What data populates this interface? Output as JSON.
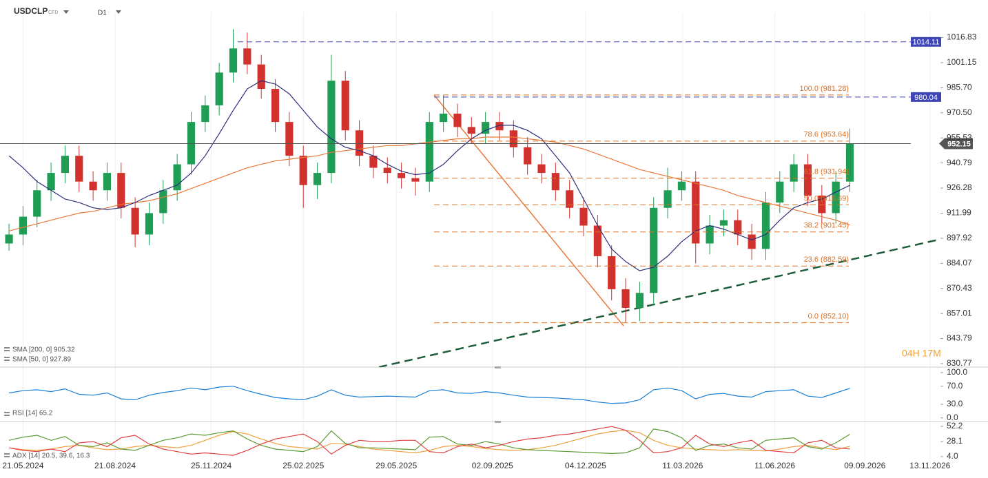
{
  "header": {
    "symbol": "USDCLP",
    "instrument_type": "CFD",
    "interval": "D1"
  },
  "countdown": "04H 17M",
  "chart_data": [
    {
      "type": "candlestick",
      "log_scale": true,
      "x_grid": true,
      "up_color": "#1f9d55",
      "down_color": "#d2322d",
      "x": [
        -14,
        0,
        14,
        28,
        42,
        56,
        70,
        84,
        98,
        112,
        126,
        140,
        154,
        168,
        182,
        196,
        210,
        224,
        238,
        252,
        266,
        280,
        294,
        308,
        322,
        336,
        350,
        364,
        378,
        392,
        406,
        420,
        434,
        448,
        462,
        476,
        490,
        504,
        518,
        532,
        546,
        560,
        574,
        588,
        602,
        616,
        630,
        644,
        658,
        672,
        686,
        700,
        714,
        728,
        742,
        756,
        770,
        784,
        798,
        812,
        826
      ],
      "open": [
        895,
        900,
        910,
        925,
        935,
        945,
        930,
        925,
        935,
        915,
        900,
        912,
        925,
        940,
        965,
        975,
        995,
        1010,
        1000,
        985,
        965,
        945,
        928,
        935,
        990,
        960,
        945,
        938,
        935,
        932,
        930,
        965,
        970,
        962,
        958,
        965,
        960,
        950,
        940,
        935,
        925,
        915,
        905,
        888,
        870,
        860,
        868,
        915,
        925,
        930,
        895,
        905,
        908,
        900,
        892,
        918,
        930,
        940,
        922,
        912,
        930
      ],
      "high": [
        906,
        916,
        931,
        941,
        951,
        951,
        936,
        941,
        941,
        921,
        918,
        931,
        946,
        971,
        981,
        1001,
        1022,
        1020,
        1006,
        991,
        971,
        951,
        941,
        1006,
        996,
        966,
        951,
        944,
        941,
        938,
        971,
        981,
        976,
        968,
        971,
        971,
        966,
        956,
        946,
        941,
        931,
        921,
        911,
        894,
        876,
        874,
        921,
        938,
        936,
        936,
        911,
        914,
        914,
        906,
        924,
        936,
        946,
        946,
        928,
        936,
        961
      ],
      "low": [
        891,
        894,
        904,
        919,
        929,
        924,
        919,
        919,
        909,
        893,
        894,
        906,
        919,
        934,
        959,
        969,
        989,
        994,
        979,
        959,
        939,
        915,
        920,
        929,
        954,
        939,
        932,
        929,
        926,
        922,
        924,
        959,
        956,
        952,
        952,
        954,
        944,
        934,
        929,
        919,
        909,
        899,
        882,
        864,
        852,
        853,
        862,
        909,
        919,
        884,
        889,
        899,
        894,
        886,
        886,
        912,
        924,
        916,
        906,
        906,
        924
      ],
      "close": [
        900,
        910,
        925,
        935,
        945,
        930,
        925,
        935,
        915,
        900,
        912,
        925,
        940,
        965,
        975,
        995,
        1010,
        1000,
        985,
        965,
        945,
        928,
        935,
        990,
        960,
        945,
        938,
        935,
        932,
        930,
        965,
        970,
        962,
        958,
        965,
        960,
        950,
        940,
        935,
        925,
        915,
        905,
        888,
        870,
        860,
        868,
        915,
        925,
        930,
        895,
        905,
        908,
        900,
        892,
        918,
        930,
        940,
        922,
        912,
        930,
        952
      ],
      "xlim": [
        -23,
        964
      ],
      "xticks": [
        {
          "value": 0,
          "label": "21.05.2024"
        },
        {
          "value": 92,
          "label": "21.08.2024"
        },
        {
          "value": 188,
          "label": "25.11.2024"
        },
        {
          "value": 280,
          "label": "25.02.2025"
        },
        {
          "value": 373,
          "label": "29.05.2025"
        },
        {
          "value": 469,
          "label": "02.09.2025"
        },
        {
          "value": 562,
          "label": "04.12.2025"
        },
        {
          "value": 659,
          "label": "11.03.2026"
        },
        {
          "value": 751,
          "label": "11.06.2026"
        },
        {
          "value": 841,
          "label": "09.09.2026"
        },
        {
          "value": 906,
          "label": "13.11.2026"
        }
      ],
      "ylim": [
        829.0,
        1032.8
      ],
      "yticks": [
        830.77,
        843.79,
        857.01,
        870.43,
        884.07,
        897.92,
        911.99,
        926.28,
        940.79,
        955.53,
        {
          "value": 970.5,
          "label": "970.50"
        },
        {
          "value": 985.7,
          "label": "985.70"
        },
        1001.15,
        1016.83
      ],
      "overlays": [
        {
          "name": "SMA [200, 0] 905.32",
          "color": "#e8793a",
          "values": [
            902,
            904,
            906,
            908,
            910,
            912,
            913,
            915,
            917,
            918,
            919,
            921,
            923,
            926,
            929,
            932,
            935,
            938,
            940,
            942,
            943,
            944,
            945,
            947,
            948,
            949,
            950,
            951,
            951,
            952,
            953,
            954,
            955,
            955,
            956,
            956,
            956,
            955,
            954,
            953,
            951,
            949,
            946,
            943,
            940,
            937,
            935,
            933,
            931,
            929,
            927,
            925,
            922,
            920,
            918,
            916,
            914,
            912,
            910,
            908,
            905.32
          ]
        },
        {
          "name": "SMA [50, 0] 927.89",
          "color": "#2b2f7a",
          "values": [
            945,
            938,
            930,
            925,
            920,
            918,
            915,
            914,
            915,
            918,
            922,
            925,
            928,
            935,
            945,
            958,
            972,
            985,
            990,
            988,
            982,
            972,
            962,
            955,
            950,
            948,
            945,
            940,
            936,
            934,
            935,
            940,
            948,
            955,
            960,
            963,
            963,
            960,
            955,
            945,
            935,
            920,
            905,
            892,
            885,
            880,
            882,
            888,
            896,
            902,
            905,
            903,
            900,
            897,
            900,
            908,
            915,
            918,
            920,
            924,
            927.89
          ]
        }
      ],
      "fib_color": "#e07020",
      "fib_levels": [
        {
          "label": "100.0 (981.28)",
          "value": 981.28
        },
        {
          "label": "78.6 (953.64)",
          "value": 953.64
        },
        {
          "label": "61.8 (931.94)",
          "value": 931.94
        },
        {
          "label": "50.0 (916.69)",
          "value": 916.69
        },
        {
          "label": "38.2 (901.45)",
          "value": 901.45
        },
        {
          "label": "23.6 (882.59)",
          "value": 882.59
        },
        {
          "label": "0.0 (852.10)",
          "value": 852.1
        }
      ],
      "price_lines": [
        {
          "value": 1014.11,
          "color": "#3f44b5",
          "dashed": true
        },
        {
          "value": 980.04,
          "color": "#3f44b5",
          "dashed": true
        },
        {
          "value": 952.15,
          "color": "#555555",
          "dashed": false
        }
      ]
    },
    {
      "type": "line",
      "ylim": [
        -8,
        109
      ],
      "yticks": [
        {
          "value": 100,
          "label": "100.0"
        },
        {
          "value": 70,
          "label": "70.0"
        },
        {
          "value": 30,
          "label": "30.0"
        },
        {
          "value": 0,
          "label": "0.0"
        }
      ],
      "series": [
        {
          "name": "RSI [14] 65.2",
          "color": "#1a7fd6",
          "values": [
            55,
            60,
            62,
            58,
            64,
            52,
            50,
            55,
            42,
            40,
            50,
            56,
            60,
            66,
            62,
            68,
            70,
            60,
            52,
            45,
            42,
            40,
            48,
            62,
            50,
            46,
            47,
            48,
            47,
            46,
            60,
            62,
            55,
            54,
            58,
            55,
            50,
            46,
            45,
            44,
            42,
            40,
            35,
            32,
            33,
            40,
            62,
            66,
            60,
            42,
            52,
            54,
            48,
            46,
            58,
            60,
            62,
            48,
            45,
            55,
            65.2
          ]
        }
      ]
    },
    {
      "type": "line",
      "title": "ADX [14] 20.5, 39.6, 16.3",
      "ylim": [
        -5.9,
        57.7
      ],
      "yticks": [
        52.2,
        28.1,
        {
          "value": 4,
          "label": "4.0"
        }
      ],
      "series": [
        {
          "color": "#f0a040",
          "values": [
            18,
            15,
            14,
            16,
            20,
            22,
            18,
            15,
            16,
            20,
            22,
            20,
            18,
            22,
            30,
            38,
            44,
            40,
            32,
            25,
            20,
            18,
            16,
            25,
            24,
            20,
            16,
            14,
            12,
            10,
            14,
            20,
            22,
            20,
            17,
            15,
            14,
            15,
            18,
            22,
            28,
            34,
            40,
            44,
            46,
            42,
            30,
            22,
            18,
            16,
            15,
            14,
            15,
            14,
            13,
            16,
            20,
            22,
            18,
            15,
            20.5
          ]
        },
        {
          "color": "#5a9a30",
          "values": [
            30,
            35,
            38,
            30,
            36,
            22,
            20,
            26,
            16,
            14,
            22,
            30,
            34,
            40,
            38,
            42,
            45,
            32,
            22,
            16,
            14,
            12,
            20,
            45,
            25,
            18,
            18,
            17,
            16,
            15,
            35,
            36,
            24,
            22,
            28,
            24,
            18,
            15,
            14,
            13,
            12,
            11,
            10,
            9,
            10,
            18,
            48,
            44,
            34,
            14,
            22,
            24,
            18,
            16,
            30,
            32,
            34,
            20,
            16,
            26,
            39.6
          ]
        },
        {
          "color": "#e04040",
          "values": [
            18,
            14,
            12,
            16,
            12,
            26,
            28,
            20,
            34,
            38,
            24,
            16,
            12,
            8,
            10,
            8,
            6,
            14,
            24,
            32,
            36,
            40,
            28,
            8,
            22,
            30,
            28,
            28,
            30,
            30,
            12,
            10,
            20,
            24,
            18,
            22,
            28,
            32,
            34,
            38,
            40,
            44,
            48,
            52,
            46,
            30,
            10,
            12,
            18,
            38,
            24,
            20,
            26,
            30,
            14,
            12,
            10,
            26,
            30,
            18,
            16.3
          ]
        }
      ]
    }
  ]
}
